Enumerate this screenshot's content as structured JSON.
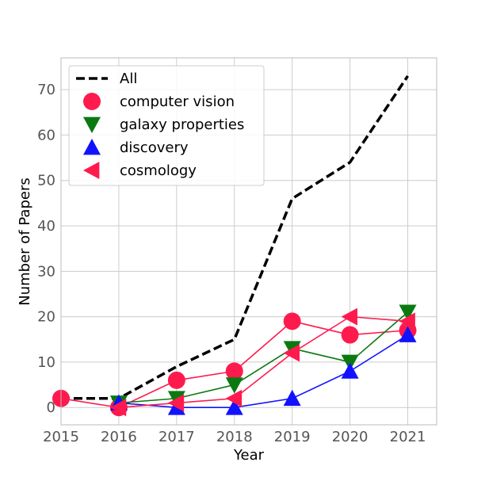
{
  "chart_data": {
    "type": "line",
    "title": "",
    "xlabel": "Year",
    "ylabel": "Number of Papers",
    "xlim": [
      2015,
      2021.5
    ],
    "ylim": [
      -3.8,
      77
    ],
    "x_ticks": [
      "2015",
      "2016",
      "2017",
      "2018",
      "2019",
      "2020",
      "2021"
    ],
    "y_ticks": [
      "0",
      "10",
      "20",
      "30",
      "40",
      "50",
      "60",
      "70"
    ],
    "grid": true,
    "legend_position": "top-left",
    "series": [
      {
        "name": "All",
        "marker": "none",
        "linestyle": "dashed",
        "color": "#000000",
        "x": [
          2015,
          2016,
          2017,
          2018,
          2019,
          2020,
          2021
        ],
        "y": [
          2,
          2,
          9,
          15,
          46,
          54,
          73
        ]
      },
      {
        "name": "computer vision",
        "marker": "circle",
        "linestyle": "solid",
        "color": "#ff1a4e",
        "x": [
          2015,
          2016,
          2017,
          2018,
          2019,
          2020,
          2021
        ],
        "y": [
          2,
          0,
          6,
          8,
          19,
          16,
          17
        ]
      },
      {
        "name": "galaxy properties",
        "marker": "triangle-down",
        "linestyle": "solid",
        "color": "#0a7a10",
        "x": [
          2016,
          2017,
          2018,
          2019,
          2020,
          2021
        ],
        "y": [
          1,
          2,
          5,
          13,
          10,
          21
        ]
      },
      {
        "name": "discovery",
        "marker": "triangle-up",
        "linestyle": "solid",
        "color": "#1212ff",
        "x": [
          2016,
          2017,
          2018,
          2019,
          2020,
          2021
        ],
        "y": [
          1,
          0,
          0,
          2,
          8,
          16
        ]
      },
      {
        "name": "cosmology",
        "marker": "triangle-left",
        "linestyle": "solid",
        "color": "#ff1a4e",
        "x": [
          2016,
          2017,
          2018,
          2019,
          2020,
          2021
        ],
        "y": [
          0,
          1,
          2,
          12,
          20,
          19
        ]
      }
    ]
  }
}
